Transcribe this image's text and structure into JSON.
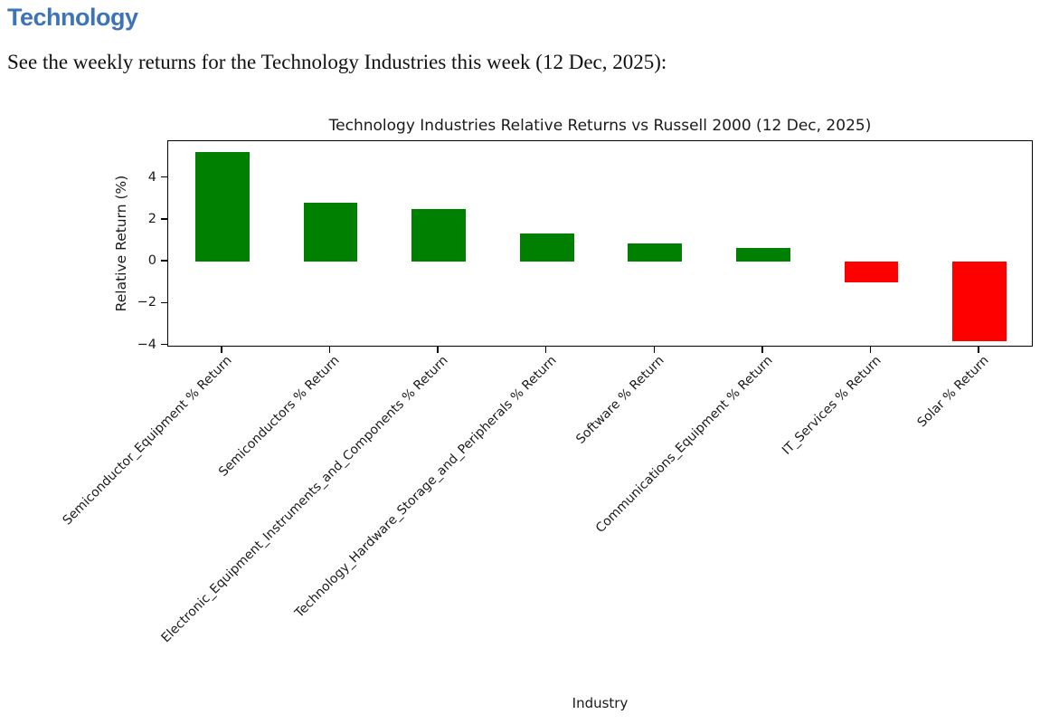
{
  "heading": "Technology",
  "intro": "See the weekly returns for the Technology Industries this week (12 Dec, 2025):",
  "colors": {
    "heading_blue": "#3d74b8",
    "positive_bar": "#008000",
    "negative_bar": "#ff0000",
    "axis": "#000000",
    "chart_text": "#1a1a1a"
  },
  "chart_data": {
    "type": "bar",
    "title": "Technology Industries Relative Returns vs Russell 2000 (12 Dec, 2025)",
    "xlabel": "Industry",
    "ylabel": "Relative Return (%)",
    "categories": [
      "Semiconductor_Equipment % Return",
      "Semiconductors % Return",
      "Electronic_Equipment_Instruments_and_Components % Return",
      "Technology_Hardware_Storage_and_Peripherals % Return",
      "Software % Return",
      "Communications_Equipment % Return",
      "IT_Services % Return",
      "Solar % Return"
    ],
    "values": [
      5.25,
      2.8,
      2.5,
      1.35,
      0.85,
      0.65,
      -1.0,
      -3.8
    ],
    "bar_colors": [
      "green",
      "green",
      "green",
      "green",
      "green",
      "green",
      "red",
      "red"
    ],
    "color_rule": "green if positive, red if negative",
    "ylim": [
      -4.1,
      5.75
    ],
    "yticks": [
      4,
      2,
      0,
      -2,
      -4
    ],
    "xtick_rotation_deg": 45,
    "bar_width_fraction": 0.5,
    "grid": false,
    "legend": "none"
  }
}
